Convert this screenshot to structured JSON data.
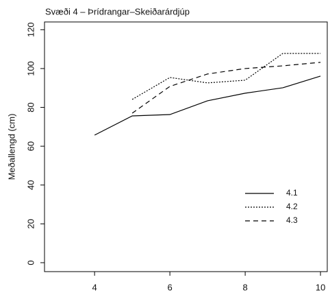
{
  "chart_data": {
    "type": "line",
    "title": "Svæði 4 – Þrídrangar–Skeiðarárdjúp",
    "y_label": "Meðallengd (cm)",
    "x": [
      4,
      5,
      6,
      7,
      8,
      9,
      10
    ],
    "series": [
      {
        "name": "4.1",
        "color": "#000000",
        "linestyle": "solid",
        "values": [
          65.7,
          75.6,
          76.3,
          83.4,
          87.3,
          90.1,
          96.1
        ]
      },
      {
        "name": "4.2",
        "color": "#000000",
        "linestyle": "dotted",
        "values": [
          null,
          84.1,
          95.4,
          92.6,
          94.0,
          107.8,
          107.8
        ]
      },
      {
        "name": "4.3",
        "color": "#000000",
        "linestyle": "dashed",
        "values": [
          null,
          77.0,
          90.8,
          97.2,
          100.0,
          101.4,
          103.2
        ]
      }
    ],
    "xlim": [
      2.67,
      10.18
    ],
    "xticks": [
      4,
      6,
      8,
      10
    ],
    "ylim": [
      -4.6,
      124
    ],
    "yticks": [
      0,
      20,
      40,
      60,
      80,
      100,
      120
    ],
    "grid": false,
    "legend": "lower-right"
  }
}
